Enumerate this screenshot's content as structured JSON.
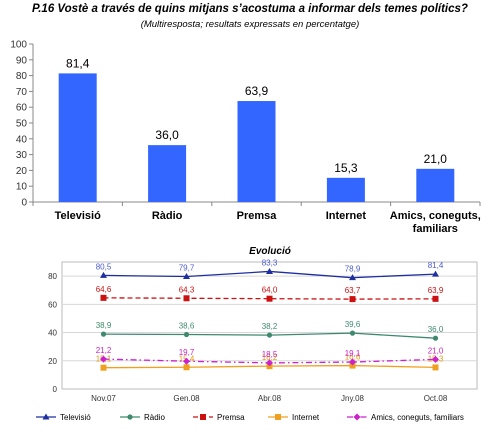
{
  "title": "P.16 Vostè a través de quins mitjans s’acostuma a informar dels temes polítics?",
  "subtitle": "(Multiresposta; resultats expressats en percentatge)",
  "chart_data": [
    {
      "type": "bar",
      "categories": [
        "Televisió",
        "Ràdio",
        "Premsa",
        "Internet",
        "Amics, coneguts, familiars"
      ],
      "values": [
        81.4,
        36.0,
        63.9,
        15.3,
        21.0
      ],
      "value_labels": [
        "81,4",
        "36,0",
        "63,9",
        "15,3",
        "21,0"
      ],
      "yticks": [
        "0",
        "10",
        "20",
        "30",
        "40",
        "50",
        "60",
        "70",
        "80",
        "90",
        "100"
      ],
      "ylim": [
        0,
        100
      ],
      "grid": false,
      "bar_color": "#3366ff"
    },
    {
      "type": "line",
      "title": "Evolució",
      "categories": [
        "Nov.07",
        "Gen.08",
        "Abr.08",
        "Jny.08",
        "Oct.08"
      ],
      "yticks": [
        "0",
        "20",
        "40",
        "60",
        "80"
      ],
      "ylim": [
        0,
        90
      ],
      "grid": true,
      "legend": "bottom",
      "series": [
        {
          "name": "Televisió",
          "values": [
            80.5,
            79.7,
            83.3,
            78.9,
            81.4
          ],
          "labels": [
            "80,5",
            "79,7",
            "83,3",
            "78,9",
            "81,4"
          ],
          "color": "#1f2fa0",
          "label_color": "#4b5bd0",
          "marker": "triangle",
          "dash": "solid"
        },
        {
          "name": "Ràdio",
          "values": [
            38.9,
            38.6,
            38.2,
            39.6,
            36.0
          ],
          "labels": [
            "38,9",
            "38,6",
            "38,2",
            "39,6",
            "36,0"
          ],
          "color": "#3f8a6e",
          "label_color": "#3f8a6e",
          "marker": "circle",
          "dash": "solid"
        },
        {
          "name": "Premsa",
          "values": [
            64.6,
            64.3,
            64.0,
            63.7,
            63.9
          ],
          "labels": [
            "64,6",
            "64,3",
            "64,0",
            "63,7",
            "63,9"
          ],
          "color": "#cc1111",
          "label_color": "#cc1111",
          "marker": "square",
          "dash": "dashed"
        },
        {
          "name": "Internet",
          "values": [
            15.1,
            15.4,
            16.2,
            16.6,
            15.3
          ],
          "labels": [
            "15,1",
            "15,4",
            "16,2",
            "16,6",
            "15,3"
          ],
          "color": "#f0a020",
          "label_color": "#e09a10",
          "marker": "square",
          "dash": "solid"
        },
        {
          "name": "Amics, coneguts, familiars",
          "values": [
            21.2,
            19.7,
            18.5,
            19.1,
            21.0
          ],
          "labels": [
            "21,2",
            "19,7",
            "18,5",
            "19,1",
            "21,0"
          ],
          "color": "#cc22cc",
          "label_color": "#cc22cc",
          "marker": "diamond",
          "dash": "dashdot"
        }
      ]
    }
  ]
}
